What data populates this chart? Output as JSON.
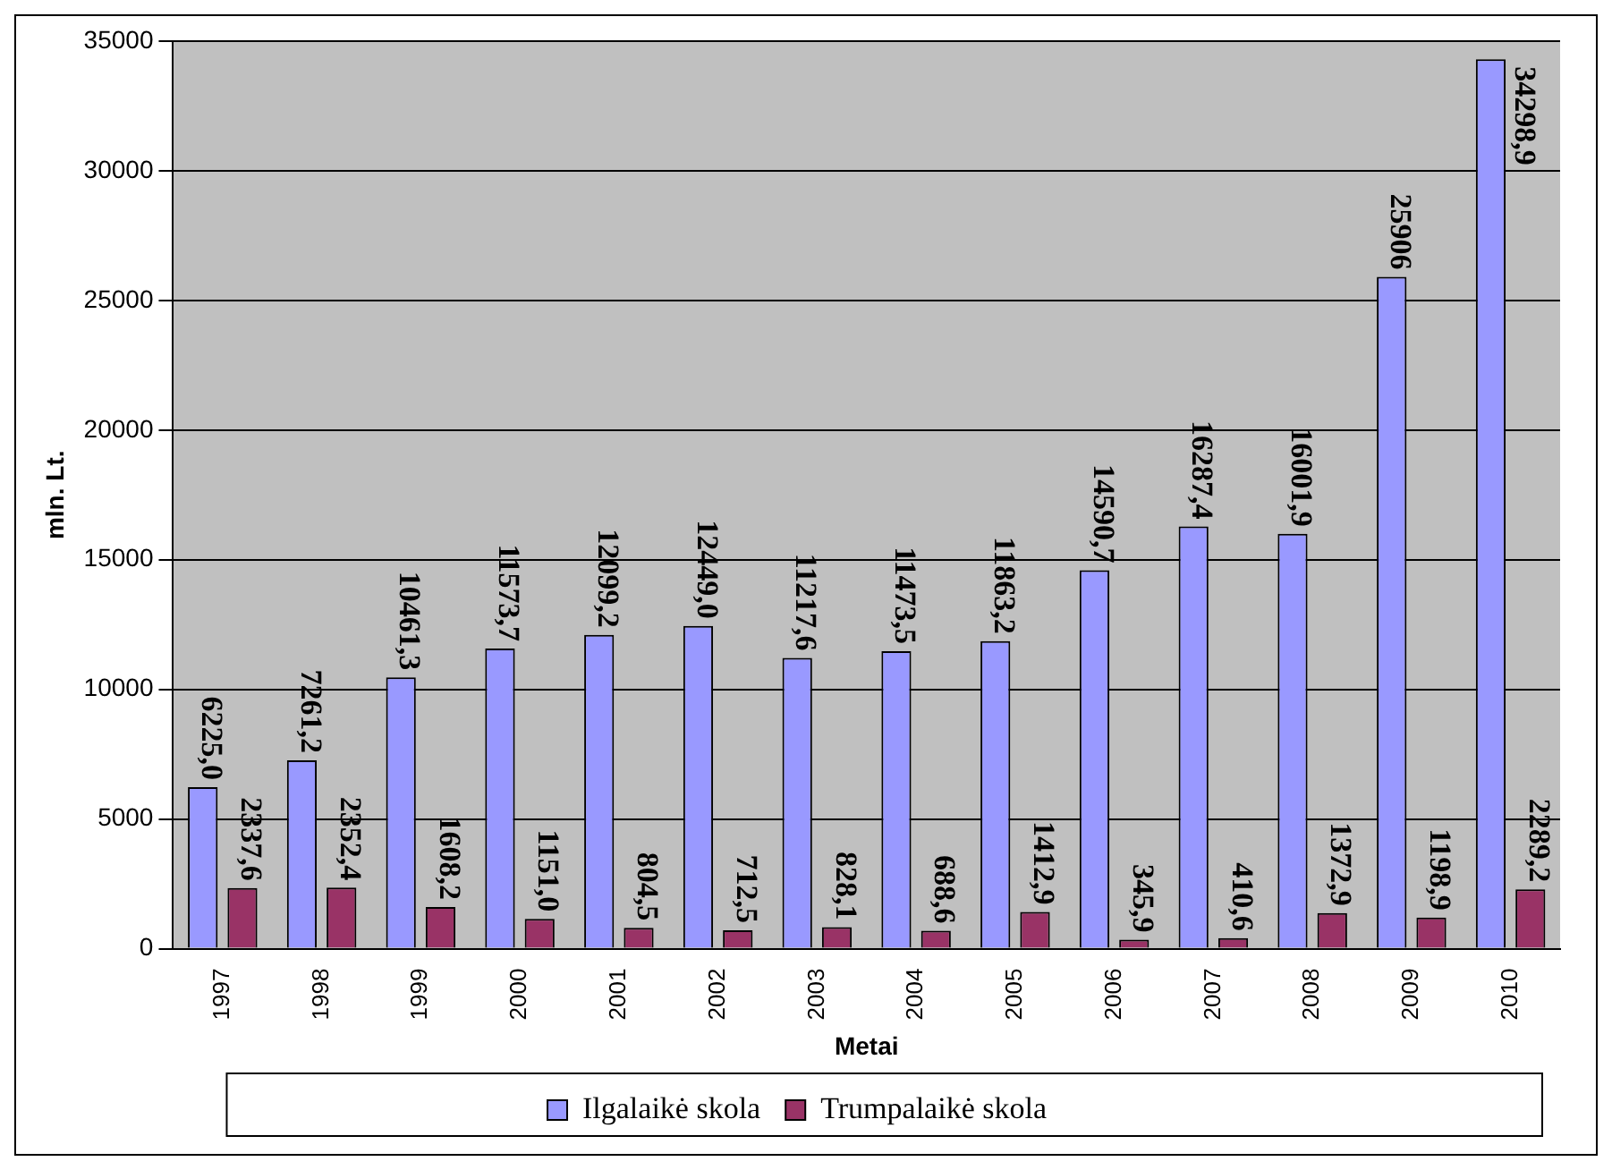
{
  "chart_data": {
    "type": "bar",
    "xlabel": "Metai",
    "ylabel": "mln. Lt.",
    "categories": [
      "1997",
      "1998",
      "1999",
      "2000",
      "2001",
      "2002",
      "2003",
      "2004",
      "2005",
      "2006",
      "2007",
      "2008",
      "2009",
      "2010"
    ],
    "series": [
      {
        "name": "Ilgalaikė skola",
        "color": "#9999ff",
        "values": [
          6225.0,
          7261.2,
          10461.3,
          11573.7,
          12099.2,
          12449.0,
          11217.6,
          11473.5,
          11863.2,
          14590.7,
          16287.4,
          16001.9,
          25906,
          34298.9
        ],
        "value_labels": [
          "6225,0",
          "7261,2",
          "10461,3",
          "11573,7",
          "12099,2",
          "12449,0",
          "11217,6",
          "11473,5",
          "11863,2",
          "14590,7",
          "16287,4",
          "16001,9",
          "25906",
          "34298,9"
        ]
      },
      {
        "name": "Trumpalaikė skola",
        "color": "#993366",
        "values": [
          2337.6,
          2352.4,
          1608.2,
          1151.0,
          804.5,
          712.5,
          828.1,
          688.6,
          1412.9,
          345.9,
          410.6,
          1372.9,
          1198.9,
          2289.2
        ],
        "value_labels": [
          "2337,6",
          "2352,4",
          "1608,2",
          "1151,0",
          "804,5",
          "712,5",
          "828,1",
          "688,6",
          "1412,9",
          "345,9",
          "410,6",
          "1372,9",
          "1198,9",
          "2289,2"
        ]
      }
    ],
    "ylim": [
      0,
      35000
    ],
    "yticks": [
      0,
      5000,
      10000,
      15000,
      20000,
      25000,
      30000,
      35000
    ],
    "grid": "y",
    "legend": "bottom"
  }
}
